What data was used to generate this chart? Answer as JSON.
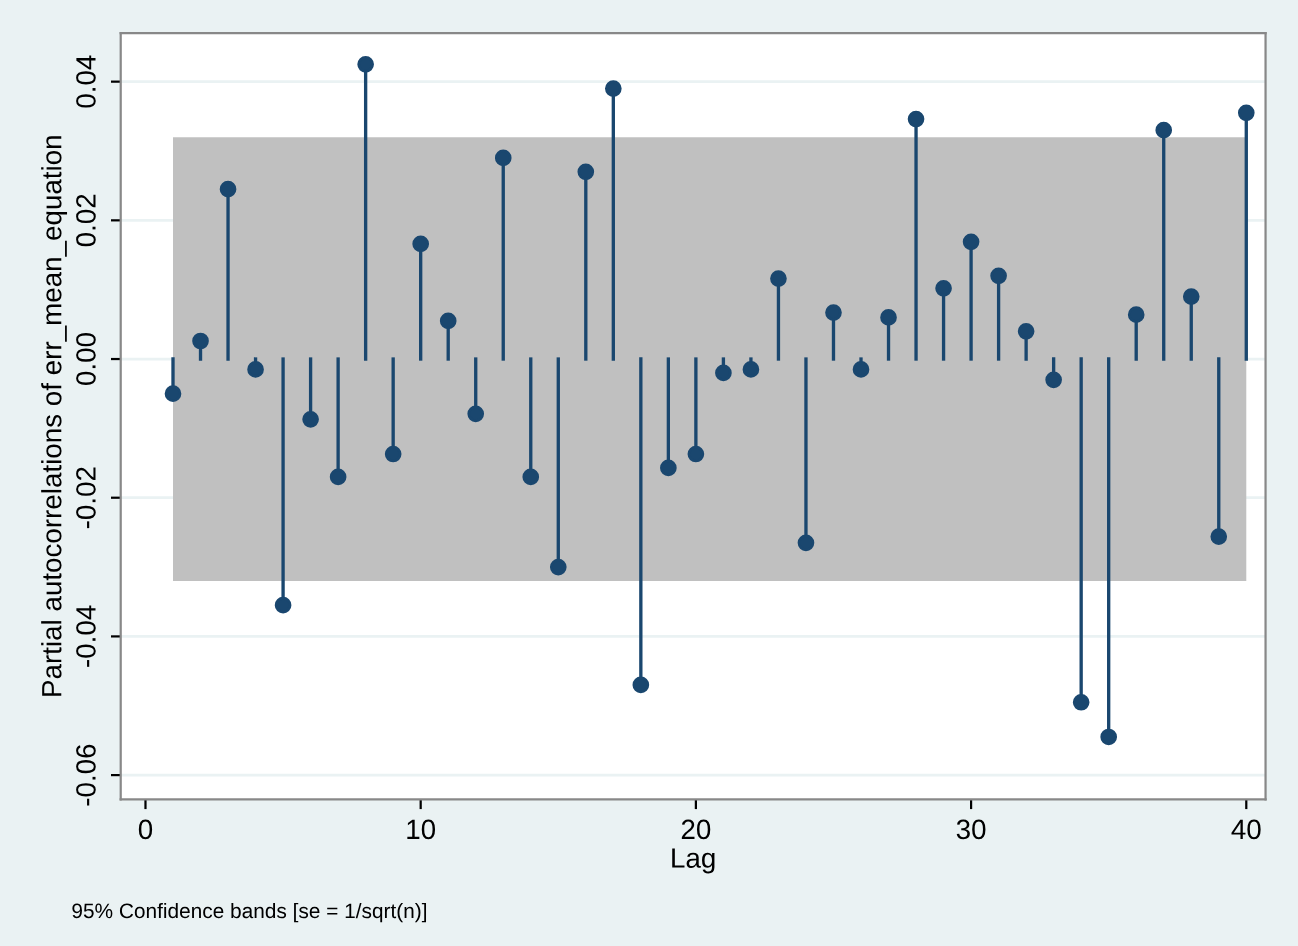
{
  "chart_data": {
    "type": "lollipop",
    "xlabel": "Lag",
    "ylabel": "Partial autocorrelations of err_mean_equation",
    "annotations": [
      "95% Confidence bands [se = 1/sqrt(n)]"
    ],
    "x": [
      1,
      2,
      3,
      4,
      5,
      6,
      7,
      8,
      9,
      10,
      11,
      12,
      13,
      14,
      15,
      16,
      17,
      18,
      19,
      20,
      21,
      22,
      23,
      24,
      25,
      26,
      27,
      28,
      29,
      30,
      31,
      32,
      33,
      34,
      35,
      36,
      37,
      38,
      39,
      40
    ],
    "series": [
      {
        "color": "#1a476f",
        "values": [
          -0.005,
          0.0026,
          0.0245,
          -0.0015,
          -0.0355,
          -0.0087,
          -0.017,
          0.0425,
          -0.0137,
          0.0166,
          0.0055,
          -0.0079,
          0.029,
          -0.017,
          -0.03,
          0.027,
          0.039,
          -0.047,
          -0.0157,
          -0.0137,
          -0.002,
          -0.0015,
          0.0116,
          -0.0265,
          0.0067,
          -0.0015,
          0.006,
          0.0346,
          0.0102,
          0.0169,
          0.012,
          0.004,
          -0.003,
          -0.0495,
          -0.0545,
          0.0064,
          0.033,
          0.009,
          -0.0256,
          0.0355
        ]
      }
    ],
    "bands": [
      {
        "axis": "y",
        "from": -0.032,
        "to": 0.032,
        "color": "#c0c0c0"
      }
    ],
    "xlim": [
      -0.9,
      40.7
    ],
    "xticks": [
      0,
      10,
      20,
      30,
      40
    ],
    "ylim": [
      -0.0635,
      0.047
    ],
    "yticks": [
      {
        "value": -0.06,
        "label": "-0.06"
      },
      {
        "value": -0.04,
        "label": "-0.04"
      },
      {
        "value": -0.02,
        "label": "-0.02"
      },
      {
        "value": 0.0,
        "label": "0.00"
      },
      {
        "value": 0.02,
        "label": "0.02"
      },
      {
        "value": 0.04,
        "label": "0.04"
      }
    ],
    "grid": "y",
    "marker": "circle"
  }
}
